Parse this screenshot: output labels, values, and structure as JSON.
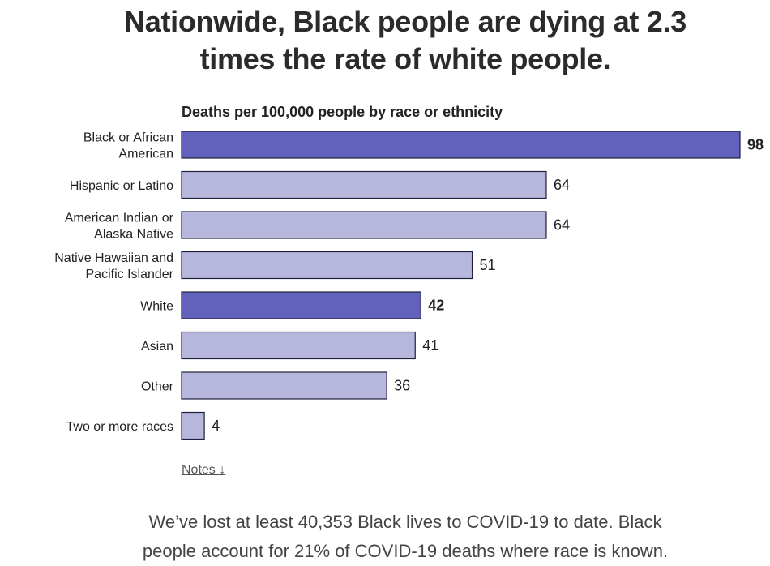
{
  "headline_line1": "Nationwide, Black people are dying at 2.3",
  "headline_line2": "times the rate of white people.",
  "notes_label": "Notes ↓",
  "summary_line1": "We’ve lost at least 40,353 Black lives to COVID-19 to date. Black",
  "summary_line2": "people account for 21% of COVID-19 deaths where race is known.",
  "colors": {
    "highlight": "#6262bd",
    "normal": "#b7b6dc",
    "stroke": "#1f1f3a"
  },
  "chart_data": {
    "type": "bar",
    "orientation": "horizontal",
    "title": "Deaths per 100,000 people by race or ethnicity",
    "xlabel": "",
    "ylabel": "",
    "xlim": [
      0,
      98
    ],
    "grid": false,
    "legend": "none",
    "categories": [
      [
        "Black or African",
        "American"
      ],
      [
        "Hispanic or Latino"
      ],
      [
        "American Indian or",
        "Alaska Native"
      ],
      [
        "Native Hawaiian and",
        "Pacific Islander"
      ],
      [
        "White"
      ],
      [
        "Asian"
      ],
      [
        "Other"
      ],
      [
        "Two or more races"
      ]
    ],
    "values": [
      98,
      64,
      64,
      51,
      42,
      41,
      36,
      4
    ],
    "highlighted": [
      true,
      false,
      false,
      false,
      true,
      false,
      false,
      false
    ]
  }
}
